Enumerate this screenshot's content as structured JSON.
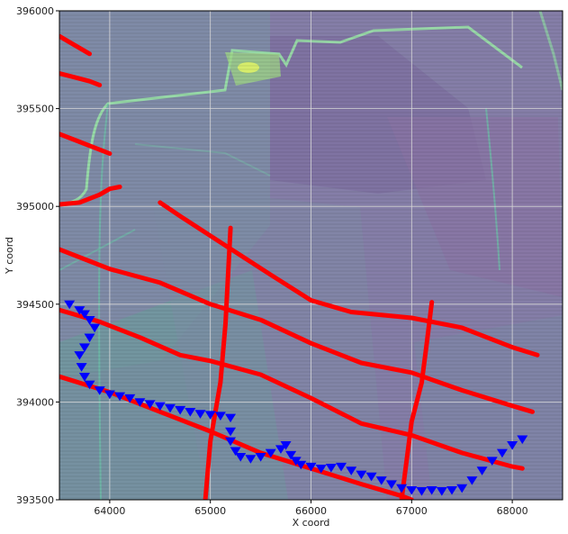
{
  "chart_data": {
    "type": "scatter",
    "title": "",
    "xlabel": "X coord",
    "ylabel": "Y coord",
    "xlim": [
      63500,
      68500
    ],
    "ylim": [
      393500,
      396000
    ],
    "xticks": [
      64000,
      65000,
      66000,
      67000,
      68000
    ],
    "yticks": [
      393500,
      394000,
      394500,
      395000,
      395500,
      396000
    ],
    "xtick_labels": [
      "64000",
      "65000",
      "66000",
      "67000",
      "68000"
    ],
    "ytick_labels": [
      "393500",
      "394000",
      "394500",
      "395000",
      "395500",
      "396000"
    ],
    "grid": true,
    "background": "elevation raster (viridis, semi-transparent) with road/dike features",
    "colors": {
      "lines": "#ff0000",
      "markers": "#0000ff",
      "raster_low": "#6b5b8e",
      "raster_mid": "#6aa39a",
      "raster_high": "#c8e35a"
    },
    "series": [
      {
        "kind": "line",
        "points": [
          [
            63500,
            395870
          ],
          [
            63600,
            395840
          ],
          [
            63700,
            395810
          ],
          [
            63800,
            395780
          ]
        ]
      },
      {
        "kind": "line",
        "points": [
          [
            63500,
            395680
          ],
          [
            63650,
            395660
          ],
          [
            63800,
            395640
          ],
          [
            63900,
            395620
          ]
        ]
      },
      {
        "kind": "line",
        "points": [
          [
            63500,
            395370
          ],
          [
            63700,
            395330
          ],
          [
            63900,
            395290
          ],
          [
            64000,
            395270
          ]
        ]
      },
      {
        "kind": "line",
        "points": [
          [
            63500,
            395010
          ],
          [
            63700,
            395020
          ],
          [
            63900,
            395060
          ],
          [
            64000,
            395090
          ],
          [
            64100,
            395100
          ]
        ]
      },
      {
        "kind": "line",
        "points": [
          [
            64500,
            395020
          ],
          [
            64700,
            394950
          ],
          [
            65000,
            394850
          ],
          [
            65300,
            394750
          ],
          [
            65600,
            394650
          ],
          [
            66000,
            394520
          ],
          [
            66400,
            394460
          ],
          [
            67000,
            394430
          ],
          [
            67500,
            394380
          ],
          [
            68000,
            394280
          ],
          [
            68250,
            394240
          ]
        ]
      },
      {
        "kind": "line",
        "points": [
          [
            63500,
            394780
          ],
          [
            63800,
            394720
          ],
          [
            64000,
            394680
          ],
          [
            64500,
            394610
          ],
          [
            65000,
            394500
          ],
          [
            65500,
            394420
          ],
          [
            66000,
            394300
          ],
          [
            66500,
            394200
          ],
          [
            67000,
            394150
          ],
          [
            67500,
            394060
          ],
          [
            68000,
            393980
          ],
          [
            68200,
            393950
          ]
        ]
      },
      {
        "kind": "line",
        "points": [
          [
            63500,
            394470
          ],
          [
            63900,
            394410
          ],
          [
            64300,
            394330
          ],
          [
            64700,
            394240
          ],
          [
            65000,
            394210
          ],
          [
            65500,
            394140
          ],
          [
            66000,
            394020
          ],
          [
            66500,
            393890
          ],
          [
            67000,
            393830
          ],
          [
            67500,
            393740
          ],
          [
            68000,
            393670
          ],
          [
            68100,
            393660
          ]
        ]
      },
      {
        "kind": "line",
        "points": [
          [
            63500,
            394130
          ],
          [
            64000,
            394050
          ],
          [
            64500,
            393950
          ],
          [
            65000,
            393850
          ],
          [
            65500,
            393740
          ],
          [
            66000,
            393660
          ],
          [
            66500,
            393580
          ],
          [
            66900,
            393520
          ],
          [
            67000,
            393500
          ]
        ]
      },
      {
        "kind": "line",
        "points": [
          [
            65200,
            394890
          ],
          [
            65150,
            394400
          ],
          [
            65100,
            394100
          ],
          [
            65000,
            393800
          ],
          [
            64950,
            393500
          ]
        ]
      },
      {
        "kind": "line",
        "points": [
          [
            67200,
            394510
          ],
          [
            67150,
            394300
          ],
          [
            67100,
            394100
          ],
          [
            67000,
            393900
          ],
          [
            66950,
            393700
          ],
          [
            66900,
            393500
          ]
        ]
      },
      {
        "kind": "marker",
        "marker": "triangle-down",
        "points": [
          [
            63600,
            394500
          ],
          [
            63700,
            394470
          ],
          [
            63750,
            394450
          ],
          [
            63800,
            394420
          ],
          [
            63850,
            394380
          ],
          [
            63800,
            394330
          ],
          [
            63750,
            394280
          ],
          [
            63700,
            394240
          ],
          [
            63720,
            394180
          ],
          [
            63750,
            394130
          ],
          [
            63800,
            394090
          ],
          [
            63900,
            394060
          ],
          [
            64000,
            394040
          ],
          [
            64100,
            394030
          ],
          [
            64200,
            394020
          ],
          [
            64300,
            394000
          ],
          [
            64400,
            393990
          ],
          [
            64500,
            393980
          ],
          [
            64600,
            393970
          ],
          [
            64700,
            393960
          ],
          [
            64800,
            393950
          ],
          [
            64900,
            393940
          ],
          [
            65000,
            393935
          ],
          [
            65100,
            393930
          ],
          [
            65200,
            393920
          ],
          [
            65200,
            393850
          ],
          [
            65200,
            393800
          ],
          [
            65250,
            393750
          ],
          [
            65300,
            393720
          ],
          [
            65400,
            393710
          ],
          [
            65500,
            393720
          ],
          [
            65600,
            393740
          ],
          [
            65700,
            393760
          ],
          [
            65750,
            393780
          ],
          [
            65800,
            393730
          ],
          [
            65850,
            393700
          ],
          [
            65900,
            393680
          ],
          [
            66000,
            393670
          ],
          [
            66100,
            393660
          ],
          [
            66200,
            393665
          ],
          [
            66300,
            393670
          ],
          [
            66400,
            393650
          ],
          [
            66500,
            393630
          ],
          [
            66600,
            393620
          ],
          [
            66700,
            393600
          ],
          [
            66800,
            393580
          ],
          [
            66900,
            393560
          ],
          [
            67000,
            393550
          ],
          [
            67100,
            393545
          ],
          [
            67200,
            393550
          ],
          [
            67300,
            393545
          ],
          [
            67400,
            393550
          ],
          [
            67500,
            393560
          ],
          [
            67600,
            393600
          ],
          [
            67700,
            393650
          ],
          [
            67800,
            393700
          ],
          [
            67900,
            393740
          ],
          [
            68000,
            393780
          ],
          [
            68100,
            393810
          ]
        ]
      }
    ]
  }
}
